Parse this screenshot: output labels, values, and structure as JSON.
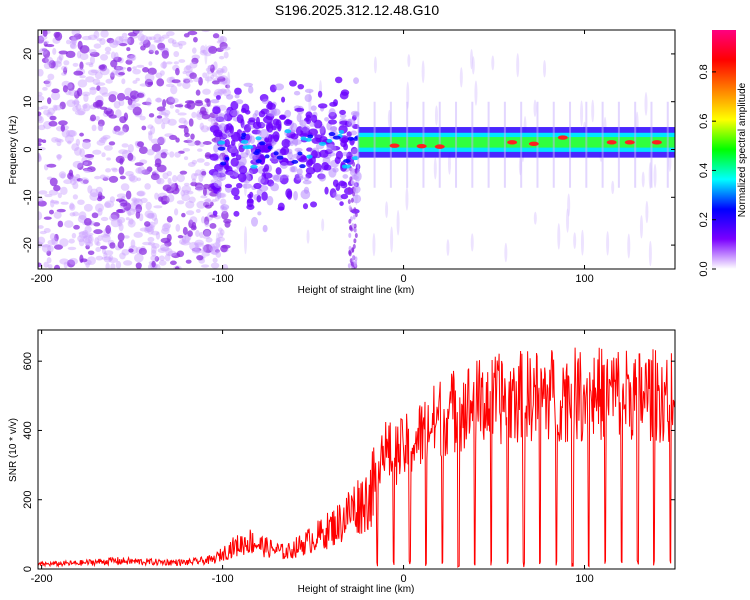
{
  "title": "S196.2025.312.12.48.G10",
  "chart_data": [
    {
      "type": "heatmap",
      "name": "spectrogram",
      "xlabel": "Height of straight line (km)",
      "ylabel": "Frequency (Hz)",
      "xlim": [
        -202,
        150
      ],
      "ylim": [
        -25,
        25
      ],
      "xticks": [
        -200,
        -100,
        0,
        100
      ],
      "yticks": [
        -20,
        -10,
        0,
        10,
        20
      ],
      "colorbar": {
        "label": "Normalized spectral amplitude",
        "range": [
          0,
          0.97
        ],
        "ticks": [
          0.0,
          0.2,
          0.4,
          0.6,
          0.8
        ],
        "colors": [
          "#ffffff",
          "#7a00ff",
          "#0000ff",
          "#00ffff",
          "#00ff00",
          "#ffff00",
          "#ff8000",
          "#ff0000",
          "#ff0080"
        ]
      },
      "regions": [
        {
          "x_from": -202,
          "x_to": -105,
          "freq_spread": 25,
          "amplitude": 0.05,
          "description": "noise"
        },
        {
          "x_from": -105,
          "x_to": -25,
          "freq_center": 0,
          "freq_spread": 6,
          "amplitude": 0.15
        },
        {
          "x_from": -25,
          "x_to": 150,
          "freq_center": 1.5,
          "freq_width": 2,
          "amplitude": 0.4
        }
      ],
      "peak_points": [
        {
          "x": -5,
          "freq": 0.8
        },
        {
          "x": 10,
          "freq": 0.7
        },
        {
          "x": 20,
          "freq": 0.6
        },
        {
          "x": 60,
          "freq": 1.5
        },
        {
          "x": 72,
          "freq": 1.2
        },
        {
          "x": 88,
          "freq": 2.5
        },
        {
          "x": 115,
          "freq": 1.5
        },
        {
          "x": 125,
          "freq": 1.5
        },
        {
          "x": 140,
          "freq": 1.5
        }
      ]
    },
    {
      "type": "line",
      "name": "snr",
      "xlabel": "Height of straight line (km)",
      "ylabel": "SNR (10 * v/v)",
      "xlim": [
        -202,
        150
      ],
      "ylim": [
        0,
        690
      ],
      "xticks": [
        -200,
        -100,
        0,
        100
      ],
      "yticks": [
        0,
        200,
        400,
        600
      ],
      "color": "#ff0000",
      "envelope": {
        "x": [
          -202,
          -180,
          -160,
          -140,
          -120,
          -105,
          -95,
          -85,
          -75,
          -65,
          -55,
          -45,
          -35,
          -28,
          -20,
          -12,
          -5,
          0,
          10,
          20,
          30,
          40,
          60,
          80,
          100,
          120,
          150
        ],
        "y": [
          20,
          25,
          35,
          30,
          28,
          40,
          90,
          120,
          90,
          70,
          110,
          150,
          200,
          260,
          300,
          420,
          400,
          420,
          470,
          530,
          560,
          580,
          600,
          610,
          610,
          620,
          600
        ]
      },
      "dropouts_start": -15,
      "dropout_spacing_km": 9
    }
  ]
}
